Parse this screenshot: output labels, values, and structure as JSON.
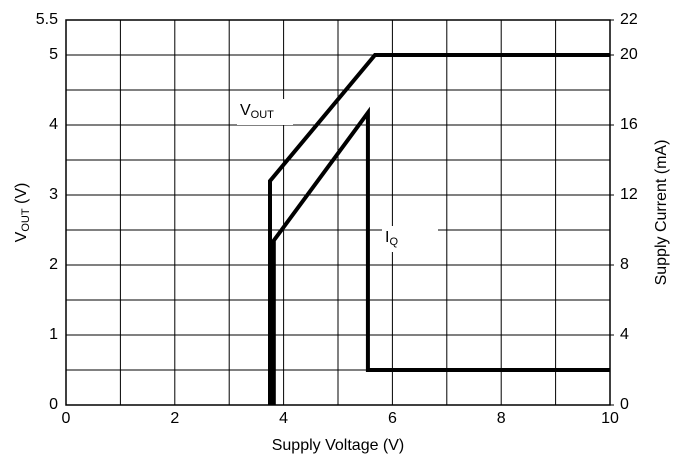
{
  "chart_data": {
    "type": "line",
    "x_label": "Supply Voltage (V)",
    "y_label": {
      "main": "V",
      "sub": "OUT",
      "rest": " (V)"
    },
    "y2_label": "Supply Current (mA)",
    "xlim": [
      0,
      10
    ],
    "xticks": [
      0,
      2,
      4,
      6,
      8,
      10
    ],
    "x_minor_ticks": [
      1,
      3,
      5,
      7,
      9
    ],
    "ylim": [
      0,
      5.5
    ],
    "yticks": [
      0,
      1,
      2,
      3,
      4,
      5,
      5.5
    ],
    "y_minor_ticks": [
      0.5,
      1.5,
      2.5,
      3.5,
      4.5
    ],
    "y2lim": [
      0,
      22
    ],
    "y2ticks": [
      0,
      4,
      8,
      12,
      16,
      20,
      22
    ],
    "grid": true,
    "series": [
      {
        "label": {
          "main": "V",
          "sub": "OUT"
        },
        "color": "#000000",
        "x": [
          3.75,
          3.75,
          5.68,
          10
        ],
        "values": [
          0,
          3.2,
          5,
          5
        ]
      },
      {
        "label": {
          "main": "I",
          "sub": "Q"
        },
        "color": "#000000",
        "axis": "y2",
        "x": [
          3.82,
          3.82,
          5.55,
          5.55,
          10
        ],
        "values": [
          0,
          9.4,
          16.7,
          2,
          2
        ]
      }
    ]
  }
}
